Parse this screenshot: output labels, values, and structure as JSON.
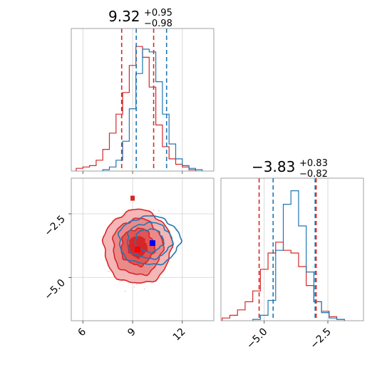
{
  "chart_data": {
    "type": "corner",
    "colors": {
      "red": "#d62728",
      "blue": "#1f77b4",
      "grid": "#d0d0d0",
      "scatter": "#f2b8c0"
    },
    "param1": {
      "title_value": "9.32",
      "title_plus": "+0.95",
      "title_minus": "−0.98",
      "xlim": [
        5.3,
        13.9
      ],
      "xticks": [
        6,
        9,
        12
      ],
      "xtick_labels": [
        "6",
        "9",
        "12"
      ],
      "red_quantiles": [
        8.34,
        10.27
      ],
      "blue_quantiles": [
        9.22,
        11.05
      ]
    },
    "param2": {
      "title_value": "−3.83",
      "title_plus": "+0.83",
      "title_minus": "−0.82",
      "xlim": [
        -6.7,
        -1.1
      ],
      "xticks": [
        -5.0,
        -2.5
      ],
      "xtick_labels": [
        "−5.0",
        "−2.5"
      ],
      "red_quantiles": [
        -5.2,
        -2.96
      ],
      "blue_quantiles": [
        -4.65,
        -3.0
      ]
    },
    "joint": {
      "xlim": [
        5.3,
        13.9
      ],
      "ylim": [
        -6.7,
        -1.1
      ],
      "yticks": [
        -2.5,
        -5.0
      ],
      "ytick_labels": [
        "−2.5",
        "−5.0"
      ],
      "red_contour_centers": [
        [
          9.3,
          -3.8
        ]
      ],
      "blue_contour_centers": [
        [
          10.0,
          -3.55
        ]
      ],
      "red_marker": [
        9.3,
        -3.9
      ],
      "blue_marker": [
        10.2,
        -3.65
      ]
    },
    "hist1_red": [
      {
        "x": 5.8,
        "y": 0.02
      },
      {
        "x": 6.2,
        "y": 0.03
      },
      {
        "x": 6.6,
        "y": 0.04
      },
      {
        "x": 7.0,
        "y": 0.08
      },
      {
        "x": 7.4,
        "y": 0.16
      },
      {
        "x": 7.8,
        "y": 0.28
      },
      {
        "x": 8.2,
        "y": 0.42
      },
      {
        "x": 8.6,
        "y": 0.58
      },
      {
        "x": 9.0,
        "y": 0.78
      },
      {
        "x": 9.4,
        "y": 0.92
      },
      {
        "x": 9.8,
        "y": 0.84
      },
      {
        "x": 10.2,
        "y": 0.62
      },
      {
        "x": 10.6,
        "y": 0.34
      },
      {
        "x": 11.0,
        "y": 0.18
      },
      {
        "x": 11.4,
        "y": 0.09
      },
      {
        "x": 11.8,
        "y": 0.05
      },
      {
        "x": 12.2,
        "y": 0.03
      },
      {
        "x": 12.6,
        "y": 0.01
      }
    ],
    "hist1_blue": [
      {
        "x": 7.4,
        "y": 0.01
      },
      {
        "x": 7.8,
        "y": 0.03
      },
      {
        "x": 8.2,
        "y": 0.08
      },
      {
        "x": 8.6,
        "y": 0.22
      },
      {
        "x": 9.0,
        "y": 0.46
      },
      {
        "x": 9.4,
        "y": 0.72
      },
      {
        "x": 9.8,
        "y": 0.9
      },
      {
        "x": 10.2,
        "y": 0.88
      },
      {
        "x": 10.6,
        "y": 0.66
      },
      {
        "x": 11.0,
        "y": 0.42
      },
      {
        "x": 11.4,
        "y": 0.2
      },
      {
        "x": 11.8,
        "y": 0.09
      },
      {
        "x": 12.2,
        "y": 0.04
      },
      {
        "x": 12.6,
        "y": 0.02
      },
      {
        "x": 13.0,
        "y": 0.01
      }
    ],
    "hist2_red": [
      {
        "x": -6.5,
        "y": 0.02
      },
      {
        "x": -6.2,
        "y": 0.04
      },
      {
        "x": -5.9,
        "y": 0.08
      },
      {
        "x": -5.6,
        "y": 0.14
      },
      {
        "x": -5.3,
        "y": 0.22
      },
      {
        "x": -5.0,
        "y": 0.38
      },
      {
        "x": -4.7,
        "y": 0.5
      },
      {
        "x": -4.4,
        "y": 0.58
      },
      {
        "x": -4.1,
        "y": 0.52
      },
      {
        "x": -3.8,
        "y": 0.5
      },
      {
        "x": -3.5,
        "y": 0.4
      },
      {
        "x": -3.2,
        "y": 0.26
      },
      {
        "x": -2.9,
        "y": 0.14
      },
      {
        "x": -2.6,
        "y": 0.07
      },
      {
        "x": -2.3,
        "y": 0.03
      },
      {
        "x": -2.0,
        "y": 0.01
      }
    ],
    "hist2_blue": [
      {
        "x": -5.3,
        "y": 0.01
      },
      {
        "x": -5.0,
        "y": 0.04
      },
      {
        "x": -4.7,
        "y": 0.15
      },
      {
        "x": -4.4,
        "y": 0.52
      },
      {
        "x": -4.1,
        "y": 0.86
      },
      {
        "x": -3.8,
        "y": 0.96
      },
      {
        "x": -3.5,
        "y": 0.7
      },
      {
        "x": -3.2,
        "y": 0.36
      },
      {
        "x": -2.9,
        "y": 0.14
      },
      {
        "x": -2.6,
        "y": 0.06
      },
      {
        "x": -2.3,
        "y": 0.02
      },
      {
        "x": -2.0,
        "y": 0.01
      }
    ]
  }
}
